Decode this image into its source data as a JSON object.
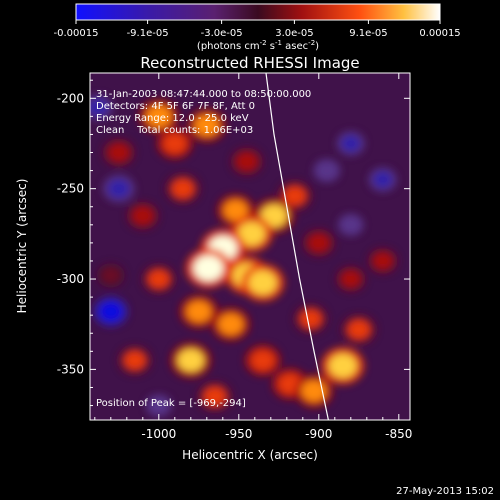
{
  "chart_data": {
    "type": "heatmap",
    "title": "Reconstructed RHESSI Image",
    "xlabel": "Heliocentric X (arcsec)",
    "ylabel": "Heliocentric Y (arcsec)",
    "xlim": [
      -1043,
      -843
    ],
    "ylim": [
      -378,
      -186
    ],
    "x_ticks": [
      "-1000",
      "-950",
      "-900",
      "-850"
    ],
    "x_tick_values": [
      -1000,
      -950,
      -900,
      -850
    ],
    "y_ticks": [
      "-200",
      "-250",
      "-300",
      "-350"
    ],
    "y_tick_values": [
      -200,
      -250,
      -300,
      -350
    ],
    "colorbar": {
      "range": [
        -0.00015,
        0.00015
      ],
      "tick_labels": [
        "-0.00015",
        "-9.1e-05",
        "-3.0e-05",
        "3.0e-05",
        "9.1e-05",
        "0.00015"
      ],
      "tick_values": [
        -0.00015,
        -9.1e-05,
        -3e-05,
        3e-05,
        9.1e-05,
        0.00015
      ],
      "unit_label": "(photons cm",
      "unit_sup1": "-2",
      "unit_mid": " s",
      "unit_sup2": "-1",
      "unit_end": " asec",
      "unit_sup3": "-2",
      "unit_close": ")"
    },
    "annotations": [
      "31-Jan-2003 08:47:44.000 to 08:50:00.000",
      "Detectors: 4F 5F 6F 7F 8F, Att 0",
      "Energy Range: 12.0 - 25.0 keV",
      "Clean    Total counts: 1.06E+03"
    ],
    "peak_label": "Position of Peak = [-969,-294]",
    "peak": [
      -969,
      -294
    ],
    "limb_line": [
      [
        -933,
        -186
      ],
      [
        -928,
        -220
      ],
      [
        -920,
        -260
      ],
      [
        -912,
        -300
      ],
      [
        -903,
        -340
      ],
      [
        -894,
        -378
      ]
    ],
    "blobs": [
      {
        "x": -969,
        "y": -294,
        "v": 1.0
      },
      {
        "x": -960,
        "y": -283,
        "v": 0.95
      },
      {
        "x": -945,
        "y": -298,
        "v": 0.9
      },
      {
        "x": -935,
        "y": -302,
        "v": 0.9
      },
      {
        "x": -942,
        "y": -275,
        "v": 0.85
      },
      {
        "x": -928,
        "y": -265,
        "v": 0.8
      },
      {
        "x": -952,
        "y": -262,
        "v": 0.65
      },
      {
        "x": -915,
        "y": -254,
        "v": 0.55
      },
      {
        "x": -975,
        "y": -318,
        "v": 0.7
      },
      {
        "x": -955,
        "y": -325,
        "v": 0.7
      },
      {
        "x": -935,
        "y": -345,
        "v": 0.6
      },
      {
        "x": -918,
        "y": -358,
        "v": 0.6
      },
      {
        "x": -903,
        "y": -362,
        "v": 0.7
      },
      {
        "x": -885,
        "y": -348,
        "v": 0.9
      },
      {
        "x": -875,
        "y": -328,
        "v": 0.55
      },
      {
        "x": -905,
        "y": -322,
        "v": 0.5
      },
      {
        "x": -980,
        "y": -345,
        "v": 0.8
      },
      {
        "x": -965,
        "y": -365,
        "v": 0.55
      },
      {
        "x": -1015,
        "y": -345,
        "v": 0.5
      },
      {
        "x": -1000,
        "y": -300,
        "v": 0.5
      },
      {
        "x": -1010,
        "y": -265,
        "v": 0.45
      },
      {
        "x": -985,
        "y": -250,
        "v": 0.55
      },
      {
        "x": -1025,
        "y": -230,
        "v": 0.45
      },
      {
        "x": -990,
        "y": -225,
        "v": 0.6
      },
      {
        "x": -970,
        "y": -215,
        "v": 0.7
      },
      {
        "x": -1000,
        "y": -210,
        "v": 0.75
      },
      {
        "x": -945,
        "y": -235,
        "v": 0.45
      },
      {
        "x": -900,
        "y": -280,
        "v": 0.45
      },
      {
        "x": -880,
        "y": -300,
        "v": 0.35
      },
      {
        "x": -860,
        "y": -290,
        "v": 0.35
      },
      {
        "x": -1030,
        "y": -298,
        "v": 0.3
      },
      {
        "x": -1030,
        "y": -318,
        "v": -0.55
      },
      {
        "x": -1025,
        "y": -250,
        "v": -0.45
      },
      {
        "x": -1038,
        "y": -205,
        "v": -0.35
      },
      {
        "x": -880,
        "y": -225,
        "v": -0.3
      },
      {
        "x": -860,
        "y": -245,
        "v": -0.3
      },
      {
        "x": -895,
        "y": -240,
        "v": -0.25
      },
      {
        "x": -880,
        "y": -270,
        "v": -0.2
      },
      {
        "x": -1000,
        "y": -370,
        "v": -0.2
      }
    ]
  },
  "footer_date": "27-May-2013 15:02"
}
